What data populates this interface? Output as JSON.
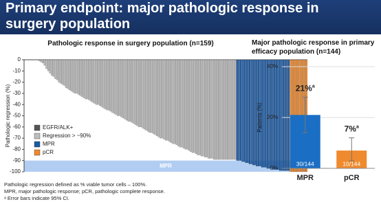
{
  "header": {
    "title": "Primary endpoint: major pathologic response in surgery population"
  },
  "footnotes": [
    "Pathologic regression defined as % viable tumor cells – 100%.",
    "MPR, major pathologic response; pCR, pathologic complete response.",
    "ᵃ Error bars indicate 95% CI."
  ],
  "chart_data": [
    {
      "type": "waterfall",
      "title": "Pathologic response in surgery population (n=159)",
      "ylabel": "Pathologic regression (%)",
      "ylim": [
        -100,
        0
      ],
      "yticks": [
        0,
        -10,
        -20,
        -30,
        -40,
        -50,
        -60,
        -70,
        -80,
        -90,
        -100
      ],
      "legend": [
        {
          "label": "EGFR/ALK+",
          "color": "#555555"
        },
        {
          "label": "Regression > ~90%",
          "color": "#bdbdbd"
        },
        {
          "label": "MPR",
          "color": "#1a5aa6"
        },
        {
          "label": "pCR",
          "color": "#ef8a2e"
        }
      ],
      "band": {
        "label": "MPR",
        "range": [
          -90,
          -100
        ],
        "color": "#9ec0ee"
      },
      "series": [
        {
          "color": "#bdbdbd",
          "values": [
            0,
            0,
            0,
            0,
            0,
            0,
            0,
            0,
            -1,
            -2,
            -3,
            -5,
            -8,
            -10,
            -12,
            -14,
            -15,
            -17,
            -18,
            -20,
            -21,
            -22,
            -23,
            -25,
            -26,
            -27,
            -28,
            -29,
            -30,
            -30,
            -31,
            -32,
            -33,
            -34,
            -35,
            -35,
            -36,
            -37,
            -38,
            -39,
            -40,
            -40,
            -41,
            -42,
            -43,
            -44,
            -45,
            -45,
            -46,
            -47,
            -48,
            -49,
            -50,
            -50,
            -51,
            -52,
            -53,
            -54,
            -55,
            -55,
            -56,
            -57,
            -58,
            -59,
            -60,
            -60,
            -61,
            -62,
            -63,
            -64,
            -65,
            -65,
            -66,
            -67,
            -68,
            -69,
            -70,
            -70,
            -71,
            -72,
            -72,
            -73,
            -74,
            -75,
            -75,
            -76,
            -77,
            -78,
            -78,
            -79,
            -80,
            -80,
            -81,
            -82,
            -83,
            -83,
            -84,
            -85,
            -85,
            -86,
            -86,
            -87,
            -87,
            -88,
            -88,
            -88,
            -89,
            -89,
            -89,
            -89,
            -89,
            -89,
            -89,
            -89,
            -89,
            -89,
            -89,
            -89,
            -89
          ]
        },
        {
          "color": "#1a5aa6",
          "values": [
            -90,
            -90,
            -90,
            -91,
            -91,
            -92,
            -92,
            -93,
            -93,
            -94,
            -94,
            -95,
            -95,
            -95,
            -96,
            -96,
            -96,
            -97,
            -97,
            -97,
            -98,
            -98,
            -98,
            -98,
            -99,
            -99,
            -99,
            -99,
            -99,
            -99
          ]
        },
        {
          "color": "#ef8a2e",
          "values": [
            -100,
            -100,
            -100,
            -100,
            -100,
            -100,
            -100,
            -100,
            -100,
            -100
          ]
        }
      ]
    },
    {
      "type": "bar",
      "title": "Major pathologic response in primary efficacy population (n=144)",
      "ylabel": "Patients (%)",
      "categories": [
        "MPR",
        "pCR"
      ],
      "values": [
        21,
        7
      ],
      "value_labels": [
        "21%",
        "7%"
      ],
      "label_note": "a",
      "count_labels": [
        "30/144",
        "10/144"
      ],
      "ci_low": [
        14,
        3
      ],
      "ci_high": [
        28,
        12
      ],
      "colors": [
        "#1a6ec4",
        "#ef8a2e"
      ],
      "ylim": [
        0,
        40
      ],
      "yticks": [
        {
          "value": 0,
          "label": "0%"
        },
        {
          "value": 20,
          "label": "20%"
        },
        {
          "value": 40,
          "label": "40%"
        }
      ]
    }
  ]
}
